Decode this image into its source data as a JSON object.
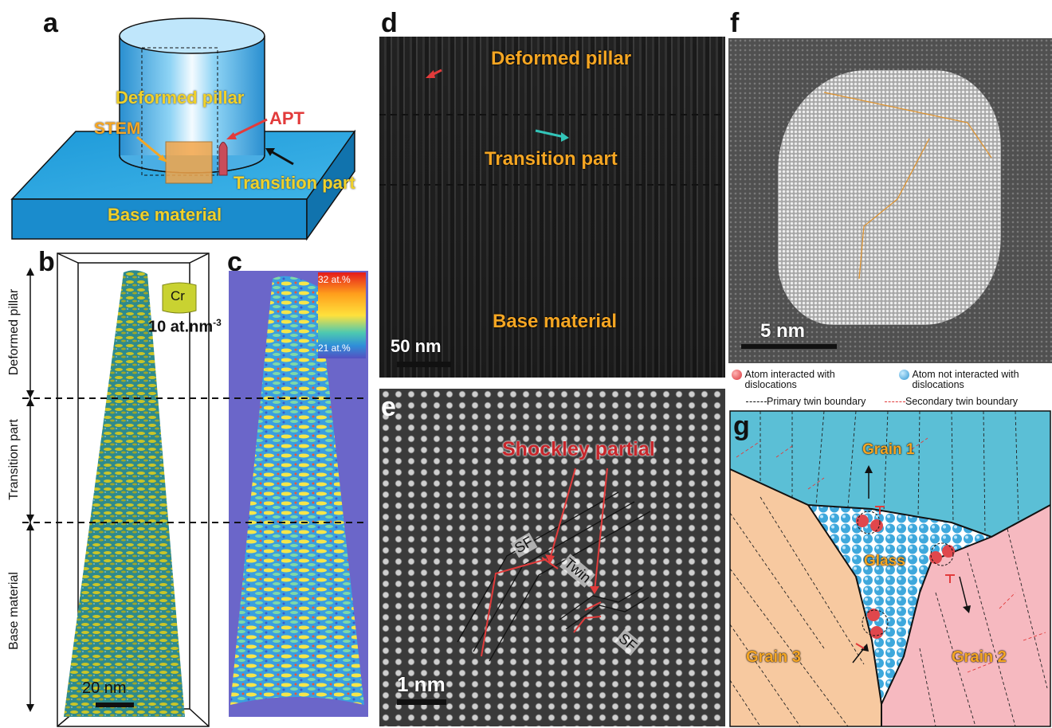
{
  "panels": {
    "a": {
      "label": "a",
      "pillar_text": "Deformed pillar",
      "stem_text": "STEM",
      "apt_text": "APT",
      "transition_text": "Transition part",
      "base_text": "Base material"
    },
    "b": {
      "label": "b",
      "axis_deformed": "Deformed pillar",
      "axis_transition": "Transition part",
      "axis_base": "Base material",
      "element_text": "Cr",
      "iso_text": "10 at.nm",
      "iso_sup": "-3",
      "scale_text": "20 nm"
    },
    "c": {
      "label": "c",
      "cbar_max": "32 at.%",
      "cbar_min": "21 at.%"
    },
    "d": {
      "label": "d",
      "top_text": "Deformed pillar",
      "mid_text": "Transition part",
      "bottom_text": "Base material",
      "scale_text": "50 nm"
    },
    "e": {
      "label": "e",
      "title_text": "Shockley partial",
      "sf_text_1": "SF",
      "twin_text": "Twin",
      "sf_text_2": "SF",
      "scale_text": "1 nm"
    },
    "f": {
      "label": "f",
      "scale_text": "5 nm"
    },
    "g": {
      "label": "g",
      "legend_red_line1": "Atom interacted with",
      "legend_red_line2": "dislocations",
      "legend_blue_line1": "Atom not interacted with",
      "legend_blue_line2": "dislocations",
      "legend_primary": "Primary twin boundary",
      "legend_secondary": "Secondary twin boundary",
      "grain1": "Grain 1",
      "grain2": "Grain 2",
      "grain3": "Grain 3",
      "glass": "Glass"
    }
  },
  "colors": {
    "accent_orange": "#f5a623",
    "accent_red": "#e23b3b",
    "pillar_blue": "#2c9bd6",
    "grain1": "#5bbfd6",
    "grain2": "#f6b9c0",
    "grain3": "#f7c9a0",
    "glass_atom": "#3ea8dc",
    "interacted_atom": "#e0474c"
  }
}
